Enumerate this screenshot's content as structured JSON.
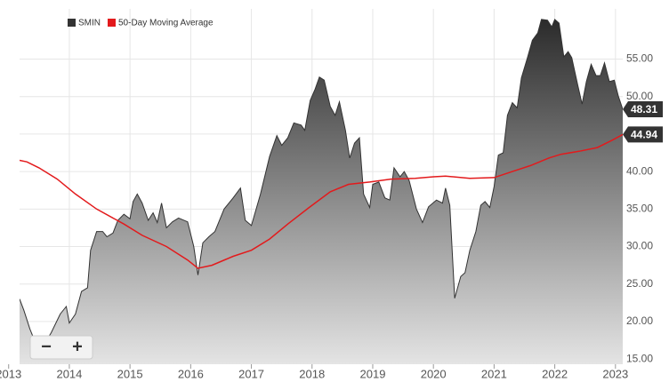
{
  "chart_data": {
    "type": "area-line",
    "series": [
      {
        "name": "SMIN",
        "color": "#333333",
        "x": [
          2013.18,
          2013.25,
          2013.35,
          2013.45,
          2013.55,
          2013.7,
          2013.85,
          2013.95,
          2014.0,
          2014.1,
          2014.2,
          2014.3,
          2014.35,
          2014.45,
          2014.55,
          2014.62,
          2014.72,
          2014.8,
          2014.9,
          2015.0,
          2015.05,
          2015.12,
          2015.2,
          2015.3,
          2015.38,
          2015.45,
          2015.52,
          2015.6,
          2015.7,
          2015.8,
          2015.95,
          2016.05,
          2016.12,
          2016.2,
          2016.3,
          2016.4,
          2016.55,
          2016.7,
          2016.82,
          2016.9,
          2017.0,
          2017.15,
          2017.3,
          2017.42,
          2017.5,
          2017.6,
          2017.7,
          2017.82,
          2017.88,
          2017.97,
          2018.05,
          2018.12,
          2018.2,
          2018.3,
          2018.38,
          2018.45,
          2018.55,
          2018.62,
          2018.7,
          2018.78,
          2018.85,
          2018.95,
          2019.0,
          2019.1,
          2019.2,
          2019.28,
          2019.35,
          2019.45,
          2019.52,
          2019.6,
          2019.72,
          2019.82,
          2019.92,
          2020.05,
          2020.15,
          2020.2,
          2020.27,
          2020.35,
          2020.45,
          2020.52,
          2020.6,
          2020.7,
          2020.78,
          2020.85,
          2020.93,
          2021.0,
          2021.07,
          2021.15,
          2021.22,
          2021.3,
          2021.38,
          2021.45,
          2021.55,
          2021.63,
          2021.72,
          2021.78,
          2021.88,
          2021.95,
          2022.0,
          2022.07,
          2022.15,
          2022.22,
          2022.28,
          2022.38,
          2022.45,
          2022.52,
          2022.6,
          2022.68,
          2022.75,
          2022.82,
          2022.9,
          2022.98,
          2023.05,
          2023.12
        ],
        "values": [
          23,
          21.5,
          19,
          17,
          16.5,
          18.5,
          21,
          22,
          19.8,
          21,
          24,
          24.5,
          29.5,
          32,
          32,
          31.3,
          31.8,
          33.5,
          34.3,
          33.7,
          36,
          37,
          35.8,
          33.5,
          34.5,
          33.2,
          35.8,
          32.5,
          33.3,
          33.8,
          33.3,
          30,
          26.2,
          30.5,
          31.3,
          32,
          35,
          36.5,
          37.8,
          33.5,
          32.8,
          37,
          42,
          44.8,
          43.5,
          44.5,
          46.5,
          46.2,
          45.5,
          49.5,
          51,
          52.6,
          52.2,
          48.7,
          47.5,
          49.3,
          45.5,
          41.8,
          43.8,
          44.5,
          37,
          35.2,
          38.3,
          38.6,
          36.5,
          36.2,
          40.5,
          39.3,
          40,
          38.8,
          35,
          33.2,
          35.3,
          36.2,
          35.8,
          37.8,
          35.5,
          23.1,
          26,
          26.5,
          29.5,
          32,
          35.5,
          36,
          35.2,
          38,
          42.2,
          42.5,
          47.5,
          49.2,
          48.5,
          52.5,
          55.2,
          57.5,
          58.5,
          60.3,
          60.2,
          59.3,
          60.3,
          59.8,
          55.3,
          56,
          55.2,
          51.5,
          49,
          52,
          54.3,
          52.8,
          52.8,
          54.5,
          52,
          52.2,
          50,
          48.31
        ]
      },
      {
        "name": "50-Day Moving Average",
        "color": "#e31a1c",
        "x": [
          2013.18,
          2013.3,
          2013.5,
          2013.8,
          2014.1,
          2014.45,
          2014.9,
          2015.2,
          2015.6,
          2015.95,
          2016.12,
          2016.35,
          2016.7,
          2017.0,
          2017.3,
          2017.6,
          2017.95,
          2018.3,
          2018.6,
          2018.95,
          2019.3,
          2019.7,
          2020.0,
          2020.2,
          2020.6,
          2021.0,
          2021.3,
          2021.6,
          2021.9,
          2022.1,
          2022.4,
          2022.7,
          2022.95,
          2023.12
        ],
        "values": [
          41.5,
          41.3,
          40.5,
          39,
          37,
          35,
          33,
          31.5,
          30,
          28.2,
          27.1,
          27.5,
          28.7,
          29.5,
          31,
          33,
          35.2,
          37.3,
          38.3,
          38.6,
          39,
          39.1,
          39.3,
          39.4,
          39.1,
          39.2,
          40,
          40.8,
          41.8,
          42.3,
          42.7,
          43.2,
          44.2,
          44.94
        ]
      }
    ],
    "xlim": [
      2013.18,
      2023.12
    ],
    "xticks": [
      2013,
      2014,
      2015,
      2016,
      2017,
      2018,
      2019,
      2020,
      2021,
      2022,
      2023
    ],
    "ylim": [
      14.3,
      61.7
    ],
    "yticks": [
      {
        "value": 15,
        "label": "15.00"
      },
      {
        "value": 20,
        "label": "20.00"
      },
      {
        "value": 25,
        "label": "25.00"
      },
      {
        "value": 30,
        "label": "30.00"
      },
      {
        "value": 35,
        "label": "35.00"
      },
      {
        "value": 40,
        "label": "40.00"
      },
      {
        "value": 45,
        "label": "45.00"
      },
      {
        "value": 50,
        "label": "50.00"
      },
      {
        "value": 55,
        "label": "55.00"
      }
    ],
    "grid": true,
    "legend": "top-left"
  },
  "controls": {
    "zoom_out": "−",
    "zoom_in": "+"
  }
}
